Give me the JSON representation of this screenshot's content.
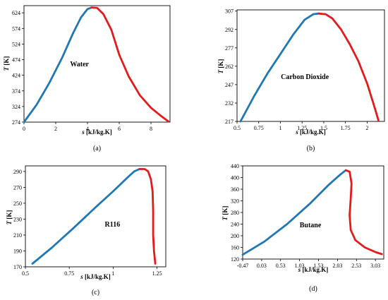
{
  "colors": {
    "liquid": "#1f77b4",
    "vapor": "#e41a1c",
    "frame": "#000000"
  },
  "chart_data": [
    {
      "type": "line",
      "panel_label": "(a)",
      "annotation": "Water",
      "title": "",
      "xlabel": "s",
      "xlabel_unit": "[kJ/kg.K]",
      "ylabel": "T",
      "ylabel_unit": "[K]",
      "xlim": [
        0,
        9.2
      ],
      "ylim": [
        274,
        647
      ],
      "x_ticks": [
        0,
        2,
        4,
        6,
        8
      ],
      "x_tick_labels": [
        "0",
        "2",
        "4",
        "6",
        "8"
      ],
      "y_ticks": [
        274,
        324,
        374,
        424,
        474,
        524,
        574,
        624
      ],
      "y_tick_labels": [
        "274",
        "324",
        "374",
        "424",
        "474",
        "524",
        "574",
        "624"
      ],
      "grid": false,
      "series": [
        {
          "color": "#1f77b4",
          "x": [
            0,
            0.8,
            1.6,
            2.4,
            3.1,
            3.6,
            4.0,
            4.25
          ],
          "y": [
            274,
            330,
            400,
            480,
            560,
            610,
            636,
            641
          ]
        },
        {
          "color": "#e41a1c",
          "x": [
            4.25,
            4.6,
            5.0,
            5.5,
            6.0,
            6.6,
            7.3,
            8.0,
            8.6,
            9.1
          ],
          "y": [
            641,
            640,
            620,
            570,
            490,
            420,
            360,
            320,
            295,
            276
          ]
        }
      ]
    },
    {
      "type": "line",
      "panel_label": "(b)",
      "annotation": "Carbon Dioxide",
      "title": "",
      "xlabel": "s",
      "xlabel_unit": "[kJ/kg.K]",
      "ylabel": "T",
      "ylabel_unit": "[K]",
      "xlim": [
        0.5,
        2.2
      ],
      "ylim": [
        217,
        308
      ],
      "x_ticks": [
        0.5,
        0.75,
        1,
        1.25,
        1.5,
        1.75,
        2
      ],
      "x_tick_labels": [
        "0.5",
        "0.75",
        "1",
        "1.25",
        "1.5",
        "1.75",
        "2"
      ],
      "y_ticks": [
        217,
        232,
        247,
        262,
        277,
        292,
        307
      ],
      "y_tick_labels": [
        "217",
        "232",
        "247",
        "262",
        "277",
        "292",
        "307"
      ],
      "grid": false,
      "series": [
        {
          "color": "#1f77b4",
          "x": [
            0.54,
            0.7,
            0.85,
            1.0,
            1.15,
            1.28,
            1.38,
            1.44
          ],
          "y": [
            217,
            238,
            256,
            272,
            288,
            300,
            304.5,
            305
          ]
        },
        {
          "color": "#e41a1c",
          "x": [
            1.44,
            1.52,
            1.6,
            1.7,
            1.8,
            1.9,
            2.0,
            2.08,
            2.13
          ],
          "y": [
            305,
            304.5,
            301,
            292,
            280,
            266,
            248,
            230,
            218
          ]
        }
      ]
    },
    {
      "type": "line",
      "panel_label": "(c)",
      "annotation": "R116",
      "title": "",
      "xlabel": "s",
      "xlabel_unit": "[kJ/kg.K]",
      "ylabel": "T",
      "ylabel_unit": "[K]",
      "xlim": [
        0.5,
        1.3
      ],
      "ylim": [
        170,
        297
      ],
      "x_ticks": [
        0.5,
        0.75,
        1,
        1.25
      ],
      "x_tick_labels": [
        "0.5",
        "0.75",
        "1",
        "1.25"
      ],
      "y_ticks": [
        170,
        190,
        210,
        230,
        250,
        270,
        290
      ],
      "y_tick_labels": [
        "170",
        "190",
        "210",
        "230",
        "250",
        "270",
        "290"
      ],
      "grid": false,
      "series": [
        {
          "color": "#1f77b4",
          "x": [
            0.54,
            0.65,
            0.78,
            0.9,
            1.0,
            1.08,
            1.12,
            1.15
          ],
          "y": [
            174,
            194,
            220,
            245,
            265,
            282,
            290,
            293
          ]
        },
        {
          "color": "#e41a1c",
          "x": [
            1.15,
            1.18,
            1.2,
            1.215,
            1.225,
            1.228,
            1.228,
            1.233,
            1.24
          ],
          "y": [
            293,
            293,
            290,
            280,
            265,
            240,
            210,
            190,
            174
          ]
        }
      ]
    },
    {
      "type": "line",
      "panel_label": "(d)",
      "annotation": "Butane",
      "title": "",
      "xlabel": "s",
      "xlabel_unit": "[kJ/kg.K]",
      "ylabel": "T",
      "ylabel_unit": "[K]",
      "xlim": [
        -0.47,
        3.25
      ],
      "ylim": [
        120,
        440
      ],
      "x_ticks": [
        -0.47,
        0.03,
        0.53,
        1.03,
        1.53,
        2.03,
        2.53,
        3.03
      ],
      "x_tick_labels": [
        "-0.47",
        "0.03",
        "0.53",
        "1.03",
        "1.53",
        "2.03",
        "2.53",
        "3.03"
      ],
      "y_ticks": [
        120,
        160,
        200,
        240,
        280,
        320,
        360,
        400,
        440
      ],
      "y_tick_labels": [
        "120",
        "160",
        "200",
        "240",
        "280",
        "320",
        "360",
        "400",
        "440"
      ],
      "grid": false,
      "series": [
        {
          "color": "#1f77b4",
          "x": [
            -0.47,
            0.1,
            0.7,
            1.3,
            1.8,
            2.1,
            2.25
          ],
          "y": [
            135,
            180,
            240,
            310,
            375,
            410,
            425
          ]
        },
        {
          "color": "#e41a1c",
          "x": [
            2.25,
            2.35,
            2.4,
            2.38,
            2.35,
            2.38,
            2.5,
            2.75,
            3.05,
            3.2
          ],
          "y": [
            425,
            420,
            380,
            330,
            270,
            220,
            185,
            160,
            143,
            137
          ]
        }
      ]
    }
  ]
}
